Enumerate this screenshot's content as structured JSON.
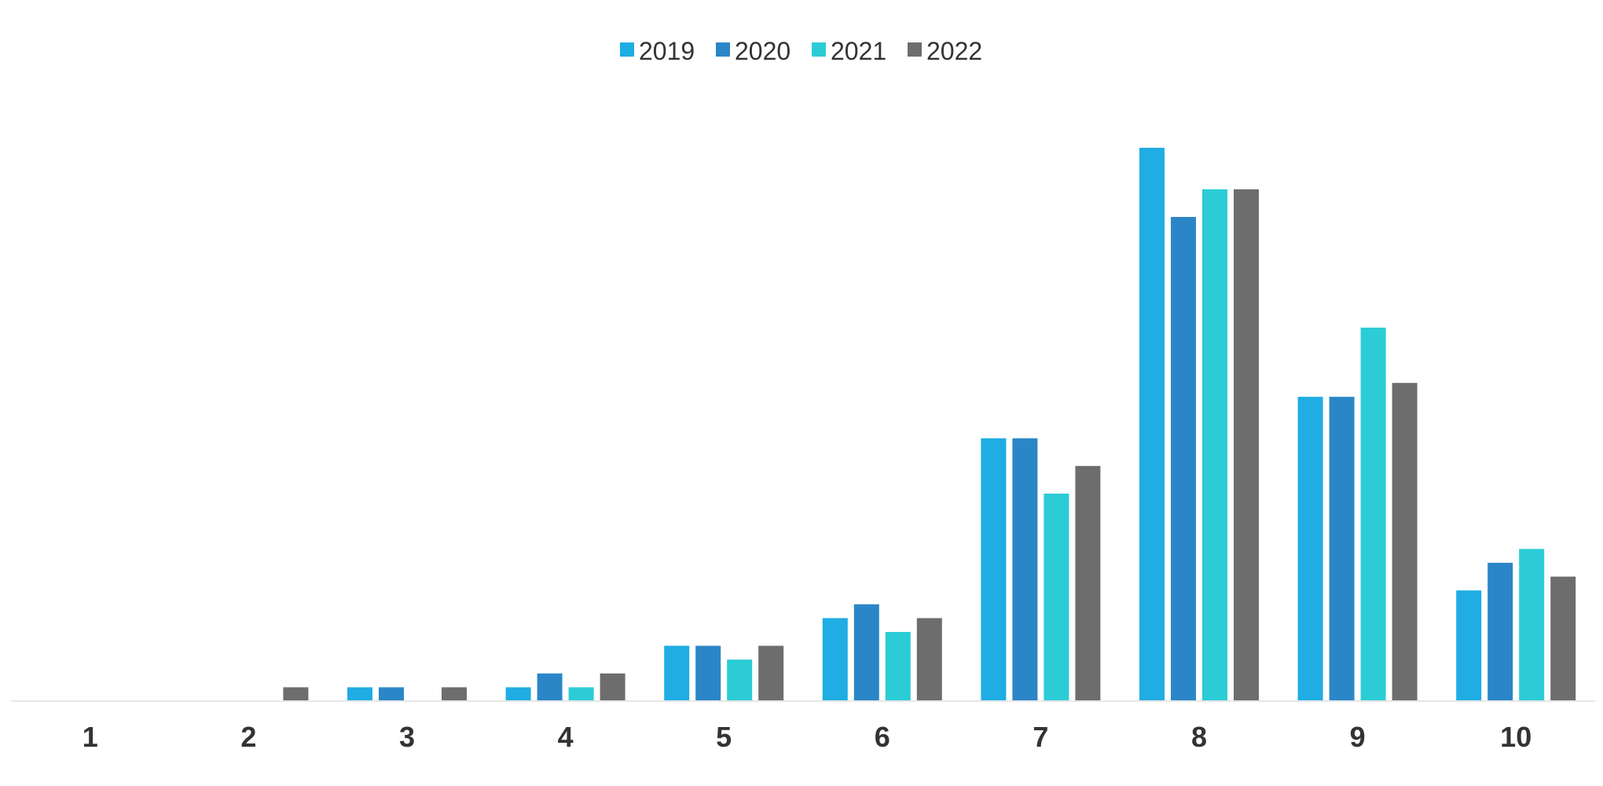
{
  "chart_data": {
    "type": "bar",
    "categories": [
      "1",
      "2",
      "3",
      "4",
      "5",
      "6",
      "7",
      "8",
      "9",
      "10"
    ],
    "series": [
      {
        "name": "2019",
        "color": "#1fade3",
        "values": [
          0,
          0,
          1,
          1,
          4,
          6,
          19,
          40,
          22,
          8
        ]
      },
      {
        "name": "2020",
        "color": "#2b86c8",
        "values": [
          0,
          0,
          1,
          2,
          4,
          7,
          19,
          35,
          22,
          10
        ]
      },
      {
        "name": "2021",
        "color": "#2bccd6",
        "values": [
          0,
          0,
          0,
          1,
          3,
          5,
          15,
          37,
          27,
          11
        ]
      },
      {
        "name": "2022",
        "color": "#6d6d6d",
        "values": [
          0,
          1,
          1,
          2,
          4,
          6,
          17,
          37,
          23,
          9
        ]
      }
    ],
    "ylim": [
      0,
      41
    ],
    "grid": false,
    "legend_position": "top-center",
    "title": "",
    "xlabel": "",
    "ylabel": ""
  }
}
